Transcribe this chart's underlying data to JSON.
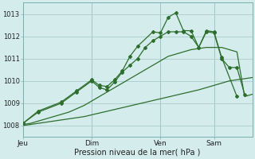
{
  "xlabel": "Pression niveau de la mer( hPa )",
  "bg_color": "#d4ecec",
  "grid_color": "#a8cccc",
  "line_color": "#2d6e2d",
  "yticks": [
    1008,
    1009,
    1010,
    1011,
    1012,
    1013
  ],
  "ylim": [
    1007.5,
    1013.5
  ],
  "xtick_labels": [
    "Jeu",
    "Dim",
    "Ven",
    "Sam"
  ],
  "xtick_positions": [
    0,
    9,
    18,
    25
  ],
  "xlim": [
    0,
    30
  ],
  "line1_x": [
    0,
    1,
    2,
    3,
    4,
    5,
    6,
    7,
    8,
    9,
    10,
    11,
    12,
    13,
    14,
    15,
    16,
    17,
    18,
    19,
    20,
    21,
    22,
    23,
    24,
    25,
    26,
    27,
    28,
    29,
    30
  ],
  "line1_y": [
    1008.0,
    1008.05,
    1008.1,
    1008.15,
    1008.2,
    1008.25,
    1008.3,
    1008.35,
    1008.4,
    1008.48,
    1008.56,
    1008.64,
    1008.72,
    1008.8,
    1008.88,
    1008.96,
    1009.04,
    1009.12,
    1009.2,
    1009.28,
    1009.36,
    1009.44,
    1009.52,
    1009.6,
    1009.7,
    1009.8,
    1009.9,
    1010.0,
    1010.05,
    1010.1,
    1010.15
  ],
  "line2_x": [
    0,
    1,
    2,
    3,
    4,
    5,
    6,
    7,
    8,
    9,
    10,
    11,
    12,
    13,
    14,
    15,
    16,
    17,
    18,
    19,
    20,
    21,
    22,
    23,
    24,
    25,
    26,
    27,
    28,
    29,
    30
  ],
  "line2_y": [
    1008.05,
    1008.1,
    1008.2,
    1008.3,
    1008.4,
    1008.5,
    1008.6,
    1008.75,
    1008.9,
    1009.1,
    1009.3,
    1009.5,
    1009.7,
    1009.9,
    1010.1,
    1010.3,
    1010.5,
    1010.7,
    1010.9,
    1011.1,
    1011.2,
    1011.3,
    1011.4,
    1011.45,
    1011.5,
    1011.5,
    1011.5,
    1011.4,
    1011.3,
    1009.3,
    1009.4
  ],
  "line3_x": [
    0,
    2,
    5,
    7,
    9,
    10,
    11,
    12,
    13,
    14,
    15,
    16,
    17,
    18,
    19,
    20,
    21,
    22,
    23,
    24,
    25,
    26,
    27,
    28,
    29
  ],
  "line3_y": [
    1008.1,
    1008.6,
    1009.0,
    1009.5,
    1010.0,
    1009.7,
    1009.6,
    1009.95,
    1010.4,
    1010.7,
    1011.0,
    1011.5,
    1011.8,
    1012.0,
    1012.2,
    1012.2,
    1012.2,
    1012.0,
    1011.5,
    1012.2,
    1012.15,
    1011.0,
    1010.6,
    1010.6,
    1009.4
  ],
  "line4_x": [
    0,
    2,
    5,
    7,
    9,
    10,
    11,
    12,
    13,
    14,
    15,
    17,
    18,
    19,
    20,
    21,
    22,
    23,
    24,
    25,
    26,
    28
  ],
  "line4_y": [
    1008.1,
    1008.65,
    1009.05,
    1009.55,
    1010.05,
    1009.8,
    1009.75,
    1010.05,
    1010.45,
    1011.1,
    1011.55,
    1012.2,
    1012.15,
    1012.85,
    1013.05,
    1012.25,
    1012.25,
    1011.5,
    1012.25,
    1012.2,
    1011.05,
    1009.3
  ]
}
